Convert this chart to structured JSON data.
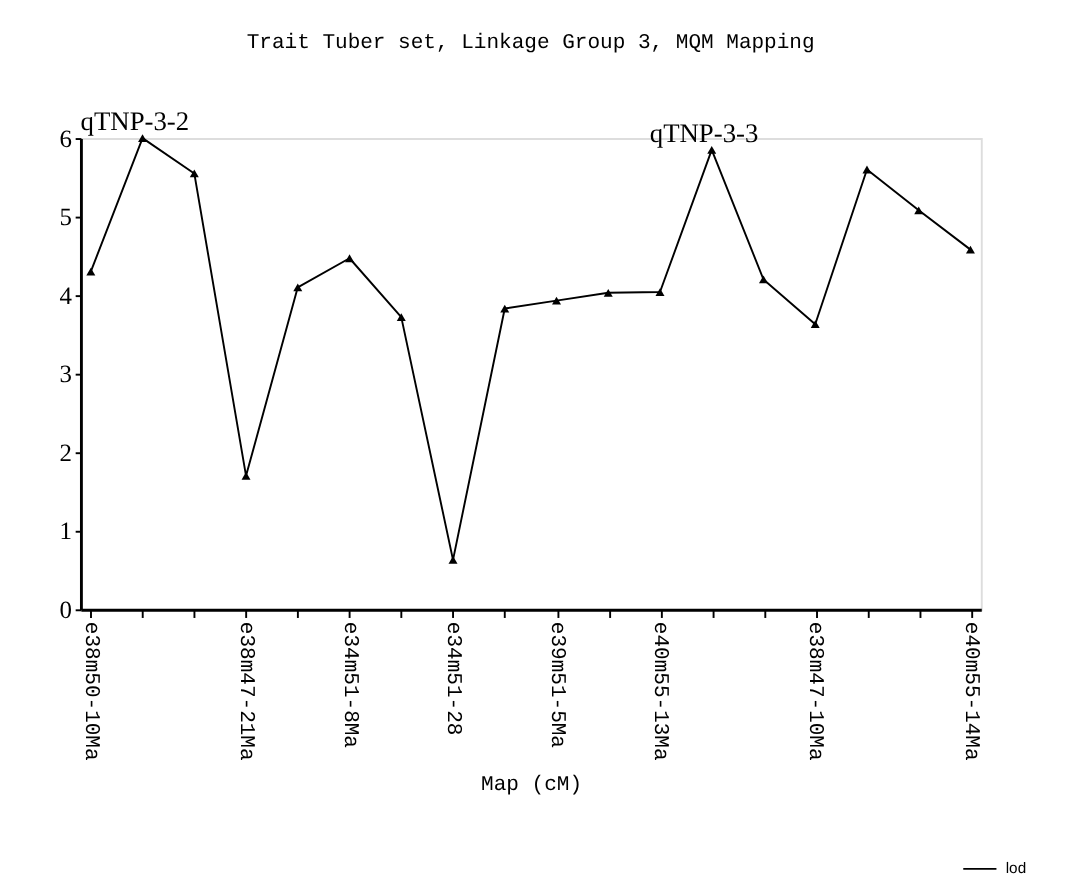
{
  "chart_data": {
    "type": "line",
    "title": "Trait Tuber set, Linkage Group 3, MQM Mapping",
    "xlabel": "Map (cM)",
    "categories": [
      "e38m50-10Ma",
      null,
      null,
      "e38m47-21Ma",
      null,
      "e34m51-8Ma",
      null,
      "e34m51-28",
      null,
      "e39m51-5Ma",
      null,
      "e40m55-13Ma",
      null,
      null,
      "e38m47-10Ma",
      null,
      null,
      "e40m55-14Ma"
    ],
    "series": [
      {
        "name": "lod",
        "color": "#000000",
        "values": [
          4.3,
          6.0,
          5.55,
          1.7,
          4.1,
          4.47,
          3.72,
          0.63,
          3.83,
          3.93,
          4.03,
          4.04,
          5.85,
          4.2,
          3.63,
          5.6,
          5.08,
          4.58
        ]
      }
    ],
    "ylim": [
      0,
      6
    ],
    "yticks": [
      0,
      1,
      2,
      3,
      4,
      5,
      6
    ],
    "annotations": [
      {
        "text": "qTNP-3-2",
        "y": 6.0
      },
      {
        "text": "qTNP-3-3",
        "y": 5.85
      }
    ],
    "grid": false,
    "legend": "bottom right",
    "marker": "triangle",
    "line_style": "solid"
  }
}
